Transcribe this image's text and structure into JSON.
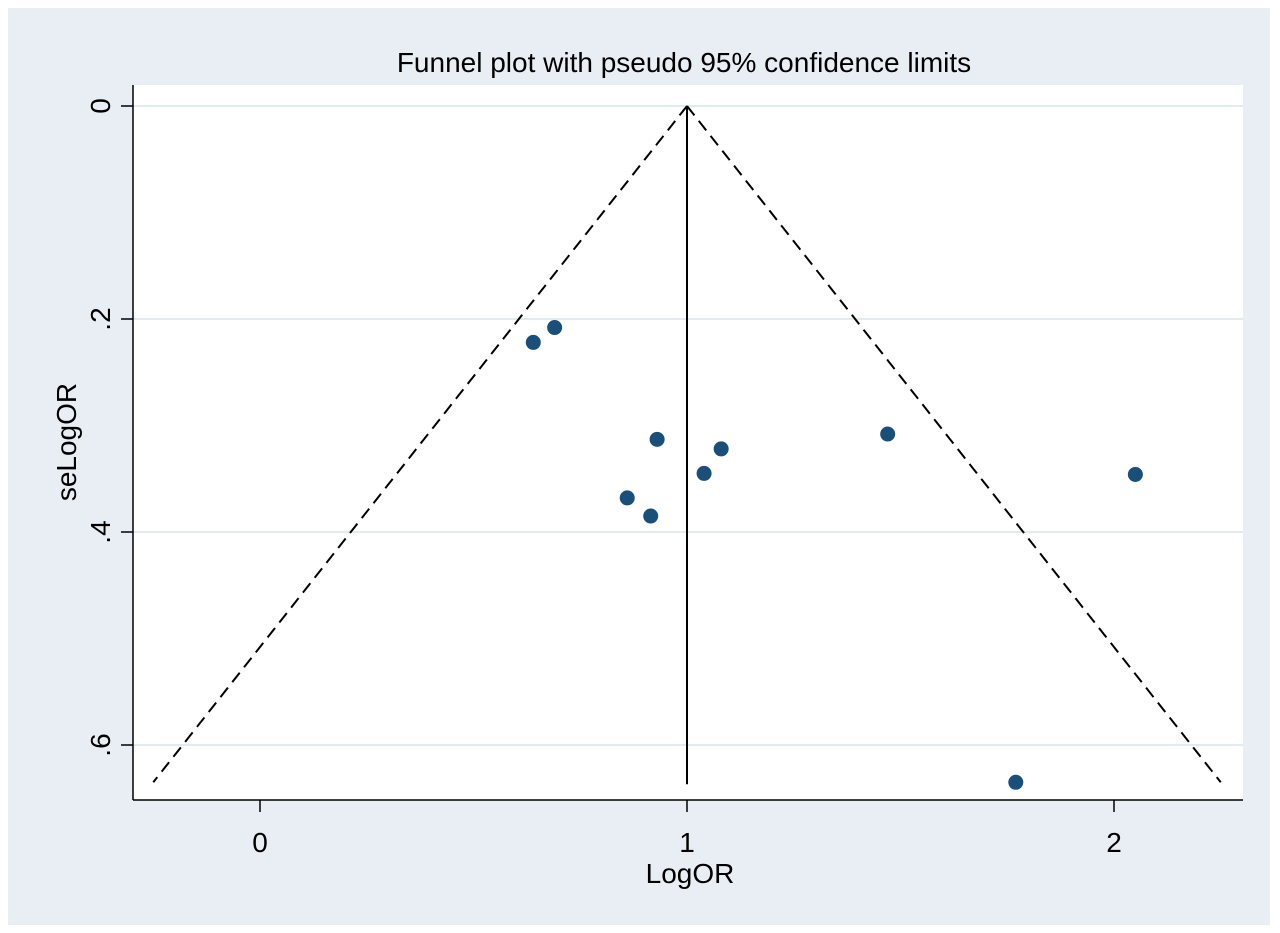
{
  "chart_data": {
    "type": "scatter",
    "title": "Funnel plot with pseudo 95% confidence limits",
    "xlabel": "LogOR",
    "ylabel": "seLogOR",
    "xlim": [
      -0.3,
      2.3
    ],
    "ylim": [
      0,
      0.65
    ],
    "y_inverted": true,
    "x_ticks": [
      {
        "value": 0,
        "label": "0"
      },
      {
        "value": 1,
        "label": "1"
      },
      {
        "value": 2,
        "label": "2"
      }
    ],
    "y_ticks": [
      {
        "value": 0,
        "label": "0"
      },
      {
        "value": 0.2,
        "label": ".2"
      },
      {
        "value": 0.4,
        "label": ".4"
      },
      {
        "value": 0.6,
        "label": ".6"
      }
    ],
    "grid": "horizontal",
    "pooled_estimate": 1.0,
    "funnel_limits": {
      "apex": [
        1.0,
        0.0
      ],
      "left_end": [
        -0.25,
        0.635
      ],
      "right_end": [
        2.25,
        0.635
      ]
    },
    "points": [
      {
        "x": 0.64,
        "y": 0.222
      },
      {
        "x": 0.69,
        "y": 0.208
      },
      {
        "x": 0.86,
        "y": 0.368
      },
      {
        "x": 0.915,
        "y": 0.385
      },
      {
        "x": 0.93,
        "y": 0.313
      },
      {
        "x": 1.04,
        "y": 0.345
      },
      {
        "x": 1.08,
        "y": 0.322
      },
      {
        "x": 1.47,
        "y": 0.308
      },
      {
        "x": 1.77,
        "y": 0.635
      },
      {
        "x": 2.05,
        "y": 0.346
      }
    ],
    "colors": {
      "background": "#e8eef3",
      "plot_area": "#ffffff",
      "gridline": "#e1ebf0",
      "marker": "#1a4f7a",
      "line": "#000000"
    }
  }
}
